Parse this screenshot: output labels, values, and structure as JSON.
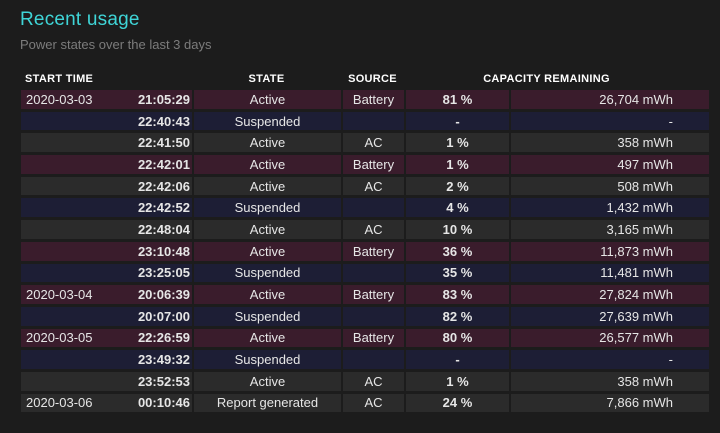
{
  "header": {
    "title": "Recent usage",
    "subtitle": "Power states over the last 3 days"
  },
  "columns": {
    "start_time": "START TIME",
    "state": "STATE",
    "source": "SOURCE",
    "capacity": "CAPACITY REMAINING"
  },
  "rows": [
    {
      "date": "2020-03-03",
      "time": "21:05:29",
      "state": "Active",
      "source": "Battery",
      "percent": "81 %",
      "mwh": "26,704 mWh",
      "kind": "battery"
    },
    {
      "date": "",
      "time": "22:40:43",
      "state": "Suspended",
      "source": "",
      "percent": "-",
      "mwh": "-",
      "kind": "suspended"
    },
    {
      "date": "",
      "time": "22:41:50",
      "state": "Active",
      "source": "AC",
      "percent": "1 %",
      "mwh": "358 mWh",
      "kind": "ac"
    },
    {
      "date": "",
      "time": "22:42:01",
      "state": "Active",
      "source": "Battery",
      "percent": "1 %",
      "mwh": "497 mWh",
      "kind": "battery"
    },
    {
      "date": "",
      "time": "22:42:06",
      "state": "Active",
      "source": "AC",
      "percent": "2 %",
      "mwh": "508 mWh",
      "kind": "ac"
    },
    {
      "date": "",
      "time": "22:42:52",
      "state": "Suspended",
      "source": "",
      "percent": "4 %",
      "mwh": "1,432 mWh",
      "kind": "suspended"
    },
    {
      "date": "",
      "time": "22:48:04",
      "state": "Active",
      "source": "AC",
      "percent": "10 %",
      "mwh": "3,165 mWh",
      "kind": "ac"
    },
    {
      "date": "",
      "time": "23:10:48",
      "state": "Active",
      "source": "Battery",
      "percent": "36 %",
      "mwh": "11,873 mWh",
      "kind": "battery"
    },
    {
      "date": "",
      "time": "23:25:05",
      "state": "Suspended",
      "source": "",
      "percent": "35 %",
      "mwh": "11,481 mWh",
      "kind": "suspended"
    },
    {
      "date": "2020-03-04",
      "time": "20:06:39",
      "state": "Active",
      "source": "Battery",
      "percent": "83 %",
      "mwh": "27,824 mWh",
      "kind": "battery"
    },
    {
      "date": "",
      "time": "20:07:00",
      "state": "Suspended",
      "source": "",
      "percent": "82 %",
      "mwh": "27,639 mWh",
      "kind": "suspended"
    },
    {
      "date": "2020-03-05",
      "time": "22:26:59",
      "state": "Active",
      "source": "Battery",
      "percent": "80 %",
      "mwh": "26,577 mWh",
      "kind": "battery"
    },
    {
      "date": "",
      "time": "23:49:32",
      "state": "Suspended",
      "source": "",
      "percent": "-",
      "mwh": "-",
      "kind": "suspended"
    },
    {
      "date": "",
      "time": "23:52:53",
      "state": "Active",
      "source": "AC",
      "percent": "1 %",
      "mwh": "358 mWh",
      "kind": "ac"
    },
    {
      "date": "2020-03-06",
      "time": "00:10:46",
      "state": "Report generated",
      "source": "AC",
      "percent": "24 %",
      "mwh": "7,866 mWh",
      "kind": "report"
    }
  ],
  "colors": {
    "title": "#3fd5d7",
    "battery_row": "#3a1c2c",
    "ac_row": "#2b2b2b",
    "suspended_row": "#1d1e35",
    "background": "#1c1c1c"
  }
}
